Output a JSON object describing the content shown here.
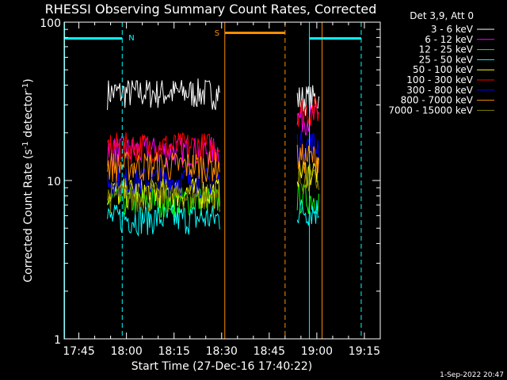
{
  "chart_data": {
    "type": "line",
    "title": "RHESSI Observing Summary Count Rates, Corrected",
    "xlabel": "Start Time (27-Dec-16 17:40:22)",
    "ylabel_main": "Corrected Count Rate (s",
    "ylabel_sup1": "-1",
    "ylabel_mid": " detector",
    "ylabel_sup2": "-1",
    "ylabel_end": ")",
    "yscale": "log",
    "ylim": [
      1,
      100
    ],
    "xlim": [
      "17:40:22",
      "19:20:00"
    ],
    "grid": false,
    "x_ticks": [
      "17:45",
      "18:00",
      "18:15",
      "18:30",
      "18:45",
      "19:00",
      "19:15"
    ],
    "y_ticks": [
      "1",
      "10",
      "100"
    ],
    "legend_position": "top-right",
    "legend_title": "Det 3,9, Att 0",
    "segments": [
      {
        "start": "17:54:00",
        "end": "18:29:40"
      },
      {
        "start": "18:53:50",
        "end": "19:00:50"
      }
    ],
    "series": [
      {
        "name": "3 - 6 keV",
        "color": "#ffffff",
        "values_seg1": 36,
        "values_seg2": 33
      },
      {
        "name": "6 - 12 keV",
        "color": "#ff00ff",
        "values_seg1": 15.5,
        "values_seg2": 25
      },
      {
        "name": "12 - 25 keV",
        "color": "#00ff00",
        "values_seg1": 7.5,
        "values_seg2": 7.8
      },
      {
        "name": "25 - 50 keV",
        "color": "#00ffff",
        "values_seg1": 5.8,
        "values_seg2": 6.5
      },
      {
        "name": "50 - 100 keV",
        "color": "#ffff00",
        "values_seg1": 8.5,
        "values_seg2": 11.5
      },
      {
        "name": "100 - 300 keV",
        "color": "#ff0000",
        "values_seg1": 16.5,
        "values_seg2": 28
      },
      {
        "name": "300 - 800 keV",
        "color": "#0000ff",
        "values_seg1": 10,
        "values_seg2": 17
      },
      {
        "name": "800 - 7000 keV",
        "color": "#ff8c00",
        "values_seg1": 12.5,
        "values_seg2": 14
      },
      {
        "name": "7000 - 15000 keV",
        "color": "#808000",
        "values_seg1": 8,
        "values_seg2": 10
      }
    ],
    "annotations": [
      {
        "text": "N",
        "color": "#00ffff"
      },
      {
        "text": "S",
        "color": "#ff8c00"
      }
    ],
    "footer_date": "1-Sep-2022 20:47"
  }
}
